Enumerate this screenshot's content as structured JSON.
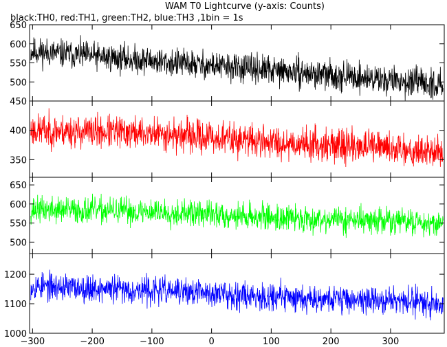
{
  "title": "WAM T0 Lightcurve (y-axis: Counts)",
  "subtitle": "black:TH0, red:TH1, green:TH2, blue:TH3 ,1bin = 1s",
  "chart_data": {
    "type": "line",
    "x_ticks": [
      -300,
      -200,
      -100,
      0,
      100,
      200,
      300
    ],
    "xlim": [
      -305,
      390
    ],
    "panels": [
      {
        "name": "TH0",
        "color": "#000000",
        "ylim": [
          450,
          650
        ],
        "y_ticks": [
          450,
          500,
          550,
          600,
          650
        ],
        "baseline": [
          [
            -300,
            580
          ],
          [
            -100,
            555
          ],
          [
            100,
            530
          ],
          [
            300,
            505
          ],
          [
            390,
            490
          ]
        ],
        "noise_amplitude": 32,
        "seed": 11
      },
      {
        "name": "TH1",
        "color": "#ff0000",
        "ylim": [
          320,
          450
        ],
        "y_ticks": [
          350,
          400
        ],
        "baseline": [
          [
            -300,
            400
          ],
          [
            -100,
            395
          ],
          [
            100,
            380
          ],
          [
            300,
            370
          ],
          [
            390,
            362
          ]
        ],
        "noise_amplitude": 24,
        "seed": 23
      },
      {
        "name": "TH2",
        "color": "#00ff00",
        "ylim": [
          470,
          670
        ],
        "y_ticks": [
          500,
          550,
          600,
          650
        ],
        "baseline": [
          [
            -300,
            585
          ],
          [
            -100,
            580
          ],
          [
            100,
            565
          ],
          [
            300,
            555
          ],
          [
            390,
            550
          ]
        ],
        "noise_amplitude": 30,
        "seed": 37
      },
      {
        "name": "TH3",
        "color": "#0000ff",
        "ylim": [
          1000,
          1270
        ],
        "y_ticks": [
          1000,
          1100,
          1200
        ],
        "baseline": [
          [
            -300,
            1160
          ],
          [
            -100,
            1145
          ],
          [
            100,
            1125
          ],
          [
            300,
            1110
          ],
          [
            390,
            1105
          ]
        ],
        "noise_amplitude": 40,
        "seed": 53
      }
    ]
  }
}
